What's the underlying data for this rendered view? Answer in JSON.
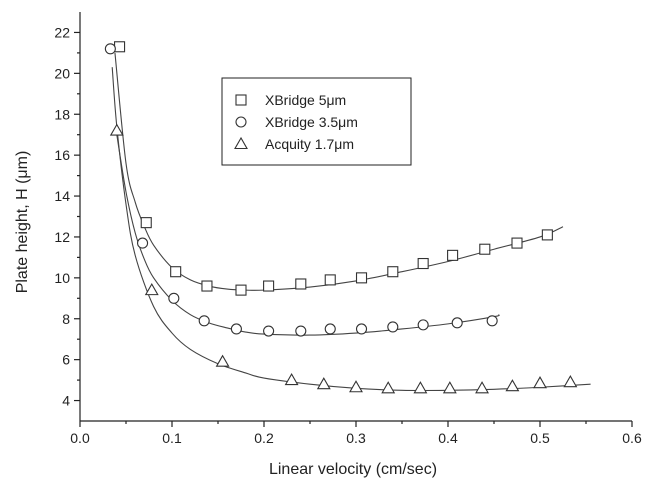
{
  "chart_data": {
    "type": "scatter",
    "title": "",
    "xlabel": "Linear velocity (cm/sec)",
    "ylabel": "Plate height, H (μm)",
    "xlim": [
      0.0,
      0.6
    ],
    "ylim": [
      3,
      23
    ],
    "x_ticks": [
      0.0,
      0.1,
      0.2,
      0.3,
      0.4,
      0.5,
      0.6
    ],
    "y_ticks": [
      4,
      6,
      8,
      10,
      12,
      14,
      16,
      18,
      20,
      22
    ],
    "grid": false,
    "legend_position": "top-center",
    "series": [
      {
        "name": "XBridge 5μm",
        "marker": "square",
        "points": [
          [
            0.043,
            21.3
          ],
          [
            0.072,
            12.7
          ],
          [
            0.104,
            10.3
          ],
          [
            0.138,
            9.6
          ],
          [
            0.175,
            9.4
          ],
          [
            0.205,
            9.6
          ],
          [
            0.24,
            9.7
          ],
          [
            0.272,
            9.9
          ],
          [
            0.306,
            10.0
          ],
          [
            0.34,
            10.3
          ],
          [
            0.373,
            10.7
          ],
          [
            0.405,
            11.1
          ],
          [
            0.44,
            11.4
          ],
          [
            0.475,
            11.7
          ],
          [
            0.508,
            12.1
          ]
        ],
        "fit": [
          [
            0.038,
            21.0
          ],
          [
            0.05,
            15.6
          ],
          [
            0.06,
            13.7
          ],
          [
            0.07,
            12.5
          ],
          [
            0.08,
            11.6
          ],
          [
            0.1,
            10.5
          ],
          [
            0.12,
            9.9
          ],
          [
            0.14,
            9.6
          ],
          [
            0.16,
            9.45
          ],
          [
            0.18,
            9.4
          ],
          [
            0.2,
            9.4
          ],
          [
            0.25,
            9.55
          ],
          [
            0.3,
            9.85
          ],
          [
            0.35,
            10.3
          ],
          [
            0.4,
            10.8
          ],
          [
            0.45,
            11.4
          ],
          [
            0.5,
            12.0
          ],
          [
            0.525,
            12.5
          ]
        ]
      },
      {
        "name": "XBridge 3.5μm",
        "marker": "circle",
        "points": [
          [
            0.033,
            21.2
          ],
          [
            0.068,
            11.7
          ],
          [
            0.102,
            9.0
          ],
          [
            0.135,
            7.9
          ],
          [
            0.17,
            7.5
          ],
          [
            0.205,
            7.4
          ],
          [
            0.24,
            7.4
          ],
          [
            0.272,
            7.5
          ],
          [
            0.306,
            7.5
          ],
          [
            0.34,
            7.6
          ],
          [
            0.373,
            7.7
          ],
          [
            0.41,
            7.8
          ],
          [
            0.448,
            7.9
          ]
        ],
        "fit": [
          [
            0.04,
            17.0
          ],
          [
            0.05,
            14.2
          ],
          [
            0.06,
            12.2
          ],
          [
            0.07,
            10.9
          ],
          [
            0.08,
            10.0
          ],
          [
            0.1,
            8.9
          ],
          [
            0.12,
            8.2
          ],
          [
            0.14,
            7.8
          ],
          [
            0.16,
            7.55
          ],
          [
            0.18,
            7.35
          ],
          [
            0.2,
            7.25
          ],
          [
            0.25,
            7.2
          ],
          [
            0.3,
            7.3
          ],
          [
            0.35,
            7.5
          ],
          [
            0.4,
            7.75
          ],
          [
            0.45,
            8.1
          ],
          [
            0.455,
            8.2
          ]
        ]
      },
      {
        "name": "Acquity 1.7μm",
        "marker": "triangle",
        "points": [
          [
            0.04,
            17.2
          ],
          [
            0.078,
            9.4
          ],
          [
            0.155,
            5.9
          ],
          [
            0.23,
            5.0
          ],
          [
            0.265,
            4.8
          ],
          [
            0.3,
            4.65
          ],
          [
            0.335,
            4.6
          ],
          [
            0.37,
            4.6
          ],
          [
            0.402,
            4.6
          ],
          [
            0.437,
            4.6
          ],
          [
            0.47,
            4.7
          ],
          [
            0.5,
            4.85
          ],
          [
            0.533,
            4.9
          ]
        ],
        "fit": [
          [
            0.035,
            20.3
          ],
          [
            0.04,
            17.4
          ],
          [
            0.05,
            13.6
          ],
          [
            0.06,
            11.1
          ],
          [
            0.08,
            8.6
          ],
          [
            0.1,
            7.3
          ],
          [
            0.12,
            6.5
          ],
          [
            0.15,
            5.8
          ],
          [
            0.18,
            5.35
          ],
          [
            0.2,
            5.1
          ],
          [
            0.25,
            4.8
          ],
          [
            0.3,
            4.6
          ],
          [
            0.35,
            4.5
          ],
          [
            0.4,
            4.5
          ],
          [
            0.45,
            4.55
          ],
          [
            0.5,
            4.65
          ],
          [
            0.555,
            4.8
          ]
        ]
      }
    ]
  }
}
